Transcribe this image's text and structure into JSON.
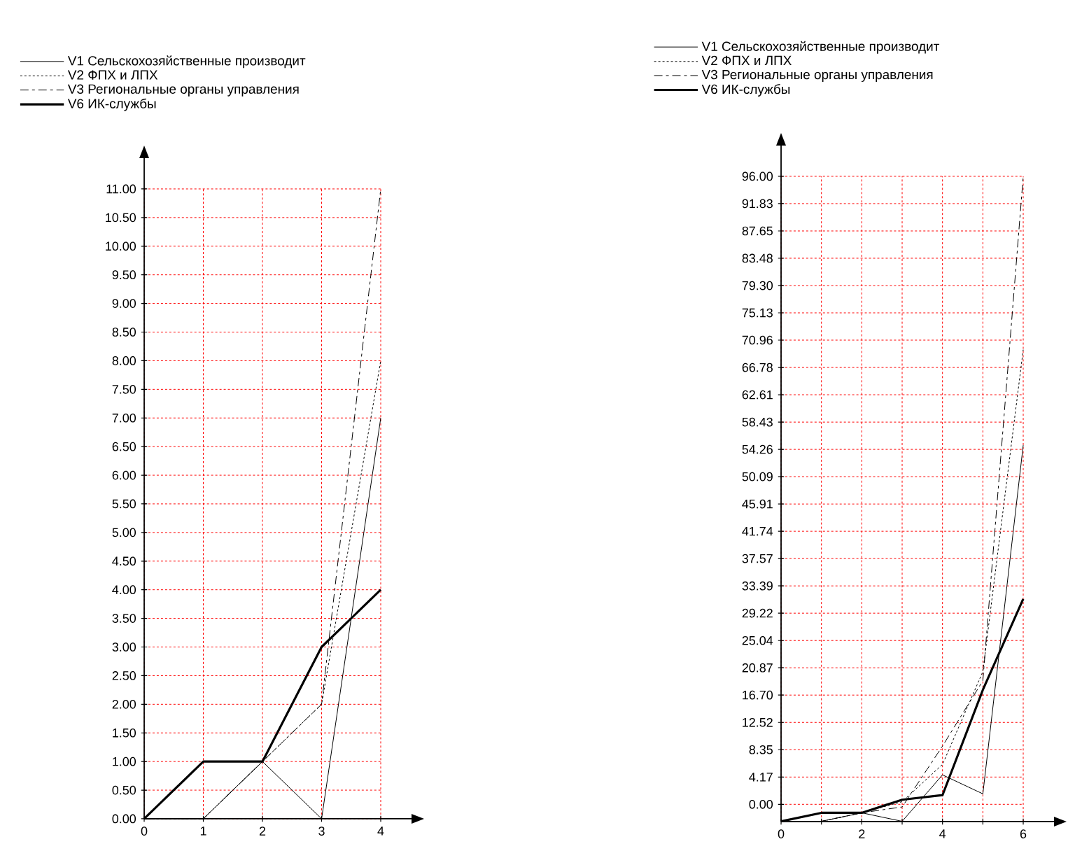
{
  "chart_data": [
    {
      "type": "line",
      "x": [
        0,
        1,
        2,
        3,
        4
      ],
      "xlim": [
        0,
        4
      ],
      "ylim": [
        0,
        11
      ],
      "xticks": [
        0,
        1,
        2,
        3,
        4
      ],
      "yticks": [
        {
          "value": 0,
          "label": "0.00"
        },
        {
          "value": 0.5,
          "label": "0.50"
        },
        {
          "value": 1,
          "label": "1.00"
        },
        {
          "value": 1.5,
          "label": "1.50"
        },
        {
          "value": 2,
          "label": "2.00"
        },
        {
          "value": 2.5,
          "label": "2.50"
        },
        {
          "value": 3,
          "label": "3.00"
        },
        {
          "value": 3.5,
          "label": "3.50"
        },
        {
          "value": 4,
          "label": "4.00"
        },
        {
          "value": 4.5,
          "label": "4.50"
        },
        {
          "value": 5,
          "label": "5.00"
        },
        {
          "value": 5.5,
          "label": "5.50"
        },
        {
          "value": 6,
          "label": "6.00"
        },
        {
          "value": 6.5,
          "label": "6.50"
        },
        {
          "value": 7,
          "label": "7.00"
        },
        {
          "value": 7.5,
          "label": "7.50"
        },
        {
          "value": 8,
          "label": "8.00"
        },
        {
          "value": 8.5,
          "label": "8.50"
        },
        {
          "value": 9,
          "label": "9.00"
        },
        {
          "value": 9.5,
          "label": "9.50"
        },
        {
          "value": 10,
          "label": "10.00"
        },
        {
          "value": 10.5,
          "label": "10.50"
        },
        {
          "value": 11,
          "label": "11.00"
        }
      ],
      "grid": true,
      "legend": "top left",
      "series": [
        {
          "name": "V1 Сельскохозяйственные производит",
          "color": "#000000",
          "line_style": "solid",
          "values": [
            0,
            0,
            1,
            0,
            7
          ]
        },
        {
          "name": "V2 ФПХ и ЛПХ",
          "color": "#000000",
          "line_style": "dotted",
          "values": [
            0,
            0,
            1,
            2,
            8
          ]
        },
        {
          "name": "V3 Региональные органы управления",
          "color": "#000000",
          "line_style": "dashed",
          "values": [
            0,
            0,
            1,
            2,
            11
          ]
        },
        {
          "name": "V6 ИК-службы",
          "color": "#000000",
          "line_style": "solid",
          "values": [
            0,
            1,
            1,
            3,
            4
          ]
        }
      ]
    },
    {
      "type": "line",
      "x": [
        0,
        1,
        2,
        3,
        4,
        5,
        6
      ],
      "xlim": [
        0,
        6
      ],
      "ylim": [
        -2.64,
        96
      ],
      "xticks": [
        0,
        {
          "value": 1,
          "label": null
        },
        2,
        {
          "value": 3,
          "label": null
        },
        4,
        {
          "value": 5,
          "label": null
        },
        6
      ],
      "yticks": [
        {
          "value": 0,
          "label": "0.00"
        },
        4.17,
        8.35,
        12.52,
        {
          "value": 16.7,
          "label": "16.70"
        },
        20.87,
        25.04,
        29.22,
        33.39,
        37.57,
        41.74,
        45.91,
        50.09,
        54.26,
        58.43,
        62.61,
        66.78,
        70.96,
        75.13,
        {
          "value": 79.3,
          "label": "79.30"
        },
        83.48,
        87.65,
        91.83,
        {
          "value": 96,
          "label": "96.00"
        }
      ],
      "grid": true,
      "legend": "top left",
      "series": [
        {
          "name": "V1 Сельскохозяйственные производит",
          "color": "#000000",
          "line_style": "solid",
          "values": [
            -2.6,
            -2.6,
            -1.3,
            -2.6,
            4.5,
            1.6,
            54.9
          ]
        },
        {
          "name": "V2 ФПХ и ЛПХ",
          "color": "#000000",
          "line_style": "dotted",
          "values": [
            -2.6,
            -2.6,
            -1.3,
            0.4,
            6.1,
            20.3,
            69.5
          ]
        },
        {
          "name": "V3 Региональные органы управления",
          "color": "#000000",
          "line_style": "dashed",
          "values": [
            -2.6,
            -2.6,
            -1.3,
            -0.4,
            8.9,
            18.9,
            96
          ]
        },
        {
          "name": "V6 ИК-службы",
          "color": "#000000",
          "line_style": "solid",
          "values": [
            -2.6,
            -1.3,
            -1.3,
            0.7,
            1.4,
            17.5,
            31.4
          ]
        }
      ]
    }
  ]
}
